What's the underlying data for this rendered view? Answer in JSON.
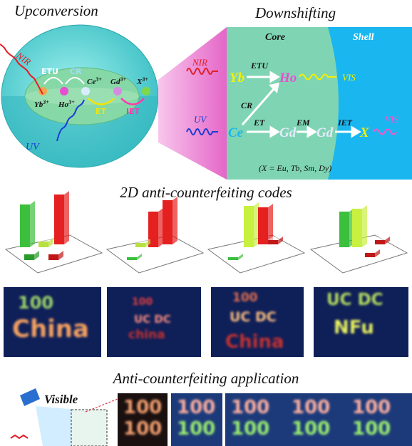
{
  "upconversion": {
    "title": "Upconversion",
    "nir": "NIR",
    "uv": "UV",
    "etu": "ETU",
    "cr": "CR",
    "et": "ET",
    "iet": "IET",
    "ions": [
      {
        "base": "Yb",
        "sup": "3+"
      },
      {
        "base": "Ho",
        "sup": "3+"
      },
      {
        "base": "Ce",
        "sup": "3+"
      },
      {
        "base": "Gd",
        "sup": "3+"
      },
      {
        "base": "X",
        "sup": "3+"
      }
    ]
  },
  "downshifting": {
    "title": "Downshifting",
    "core": "Core",
    "shell": "Shell",
    "nir": "NIR",
    "uv": "UV",
    "nodes": [
      "Yb",
      "Ho",
      "Ce",
      "Gd",
      "Gd",
      "X"
    ],
    "transfers": [
      "ETU",
      "CR",
      "ET",
      "EM",
      "IET"
    ],
    "emissions": [
      "VIS",
      "VIS"
    ],
    "note": "(X = Eu, Tb, Sm, Dy)"
  },
  "codes": {
    "title": "2D anti-counterfeiting codes",
    "photos": [
      [
        "100",
        "China"
      ],
      [
        "100",
        "UC DC",
        "china"
      ],
      [
        "100",
        "UC DC",
        "China"
      ],
      [
        "UC DC",
        "NFu"
      ]
    ]
  },
  "application": {
    "title": "Anti-counterfeiting application",
    "mode": "Visible",
    "photos": [
      [
        "100",
        "100"
      ],
      [
        "100",
        "100"
      ],
      [
        "100",
        "100",
        "100",
        "100",
        "100",
        "100"
      ]
    ]
  }
}
